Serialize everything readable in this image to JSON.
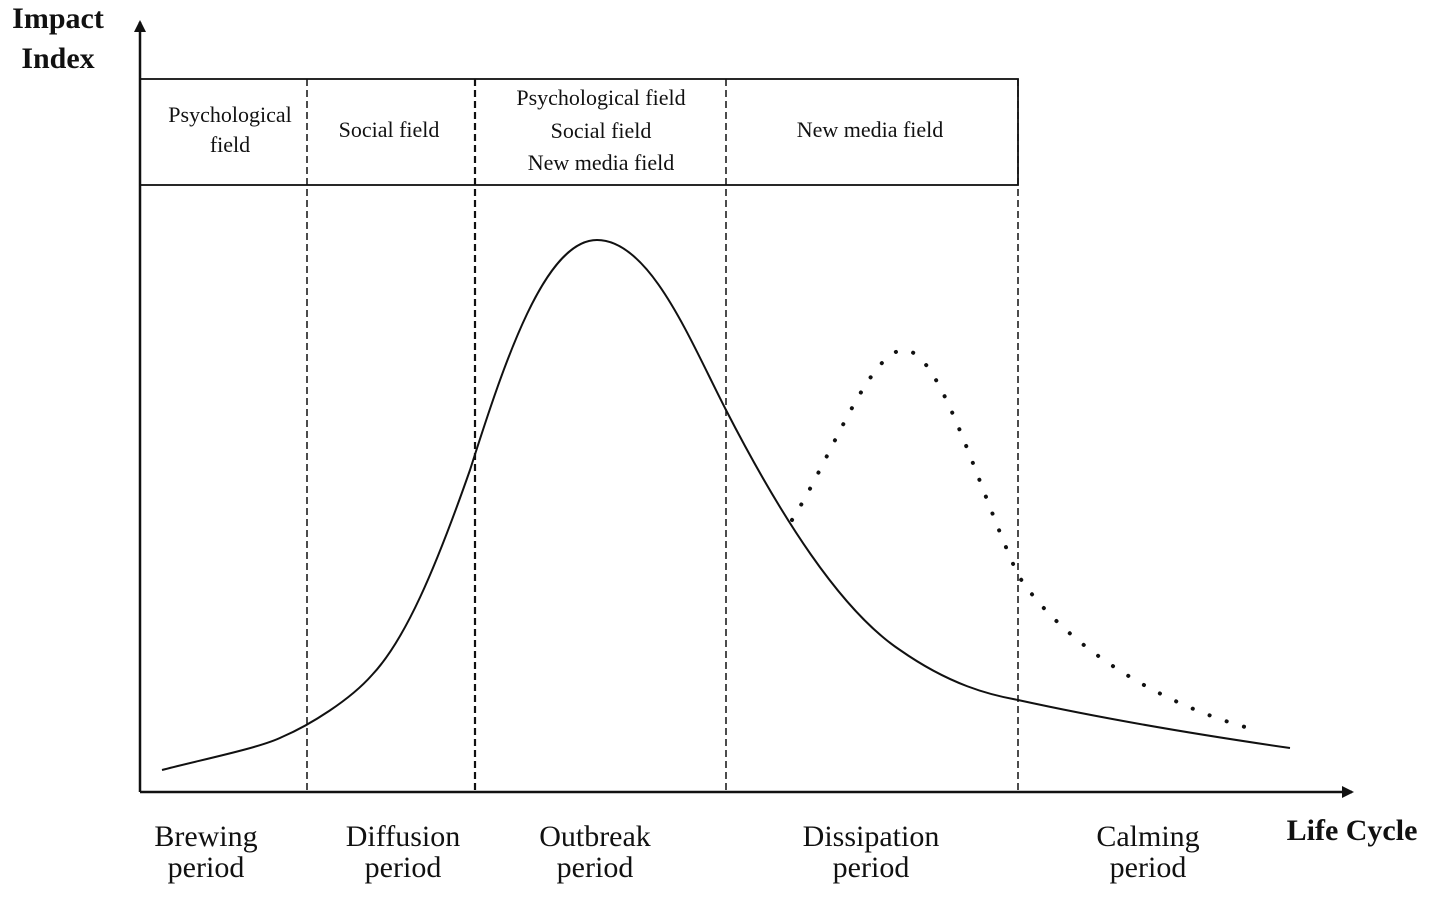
{
  "axes": {
    "y_title_lines": [
      "Impact",
      "Index"
    ],
    "x_title": "Life Cycle"
  },
  "fields": [
    {
      "lines": [
        "Psychological",
        "field"
      ]
    },
    {
      "lines": [
        "Social field"
      ]
    },
    {
      "lines": [
        "Psychological field",
        "Social field",
        "New media field"
      ]
    },
    {
      "lines": [
        "New media field"
      ]
    }
  ],
  "periods": [
    {
      "lines": [
        "Brewing",
        "period"
      ]
    },
    {
      "lines": [
        "Diffusion",
        "period"
      ]
    },
    {
      "lines": [
        "Outbreak",
        "period"
      ]
    },
    {
      "lines": [
        "Dissipation",
        "period"
      ]
    },
    {
      "lines": [
        "Calming",
        "period"
      ]
    }
  ],
  "curves": {
    "main": {
      "style": "solid",
      "color": "#111111"
    },
    "secondary": {
      "style": "dotted",
      "color": "#111111"
    }
  }
}
